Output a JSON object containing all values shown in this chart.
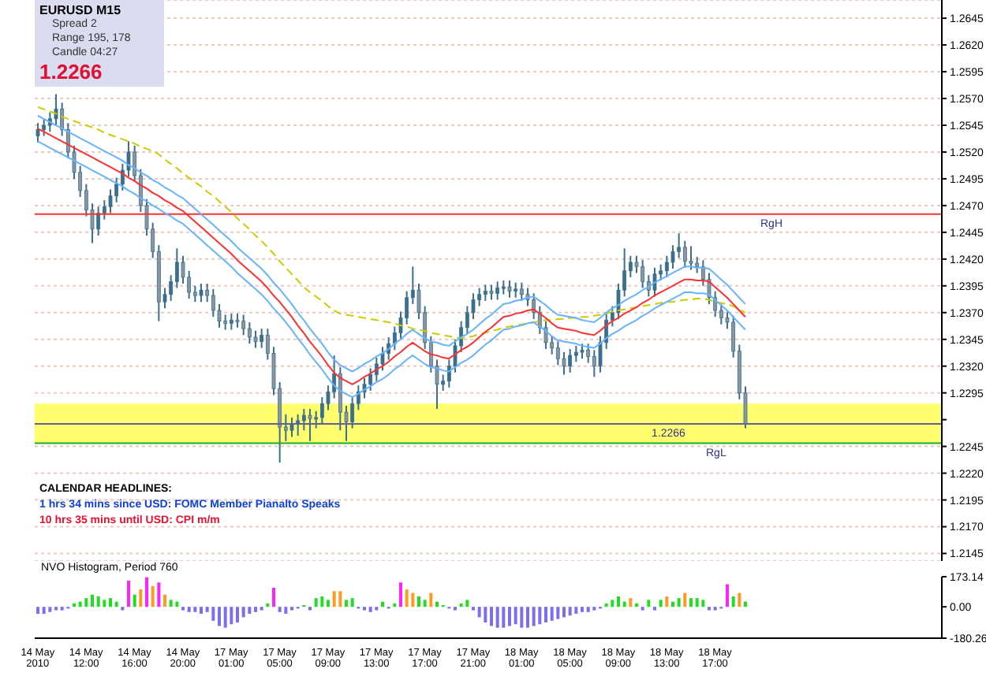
{
  "chart_data": [
    {
      "type": "candlestick",
      "title": "EURUSD  M15",
      "annotations": [
        "Spread  2",
        "Range  195, 178",
        "Candle  04:27",
        "1.2266",
        "CALENDAR HEADLINES:",
        "1 hrs 34 mins since USD: FOMC Member Pianalto Speaks",
        "10 hrs 35 mins until USD: CPI m/m"
      ],
      "categories": [
        null,
        null,
        null,
        null,
        null,
        null,
        null,
        null,
        null,
        null,
        null,
        null,
        null,
        null,
        null,
        null,
        null,
        null,
        null,
        null,
        null,
        null,
        null,
        null,
        null,
        null,
        null,
        null,
        null,
        null,
        null,
        null,
        null,
        null,
        null,
        null,
        null,
        null,
        null,
        null,
        null,
        null,
        null,
        null,
        null,
        null,
        null,
        null,
        null,
        null,
        null,
        null,
        null,
        null,
        null,
        null,
        null,
        null,
        null,
        null,
        null,
        null,
        null,
        null,
        null,
        null,
        null,
        null,
        null,
        null,
        null,
        null,
        null,
        null,
        null,
        null,
        null,
        null,
        null,
        null,
        null,
        null,
        null,
        null,
        null,
        null,
        null,
        null,
        null,
        null,
        null,
        null,
        null,
        null,
        null,
        null,
        null,
        null,
        null,
        null,
        null,
        null,
        null,
        null,
        null,
        null,
        null,
        null,
        null,
        null,
        null,
        null,
        null,
        null,
        null,
        null,
        null,
        null,
        null,
        null,
        null,
        null,
        null,
        null,
        null,
        null,
        null,
        null,
        null,
        null,
        null,
        null,
        null,
        null,
        null,
        null,
        null,
        null,
        null,
        null,
        null,
        null,
        null,
        null,
        null,
        null,
        null,
        null,
        null,
        null
      ],
      "color": "#3a6f8f",
      "ohlc": [
        [
          1.2535,
          1.2547,
          1.2529,
          1.2541
        ],
        [
          1.2541,
          1.2551,
          1.2535,
          1.2545
        ],
        [
          1.2545,
          1.2557,
          1.2539,
          1.2551
        ],
        [
          1.2551,
          1.2574,
          1.2545,
          1.256
        ],
        [
          1.256,
          1.2566,
          1.2535,
          1.2541
        ],
        [
          1.2541,
          1.2547,
          1.2514,
          1.252
        ],
        [
          1.252,
          1.2526,
          1.2495,
          1.2501
        ],
        [
          1.2501,
          1.2507,
          1.2478,
          1.2484
        ],
        [
          1.2484,
          1.249,
          1.246,
          1.2466
        ],
        [
          1.2466,
          1.2472,
          1.2435,
          1.2448
        ],
        [
          1.2448,
          1.2469,
          1.2442,
          1.2463
        ],
        [
          1.2463,
          1.2475,
          1.2457,
          1.2469
        ],
        [
          1.2469,
          1.2485,
          1.2463,
          1.2479
        ],
        [
          1.2479,
          1.2496,
          1.2473,
          1.249
        ],
        [
          1.249,
          1.2509,
          1.2484,
          1.2503
        ],
        [
          1.2503,
          1.253,
          1.2497,
          1.252
        ],
        [
          1.252,
          1.2526,
          1.2492,
          1.2498
        ],
        [
          1.2498,
          1.2504,
          1.2464,
          1.247
        ],
        [
          1.247,
          1.2476,
          1.2442,
          1.2448
        ],
        [
          1.2448,
          1.2454,
          1.2421,
          1.2427
        ],
        [
          1.2427,
          1.2433,
          1.2362,
          1.238
        ],
        [
          1.238,
          1.2393,
          1.2374,
          1.2387
        ],
        [
          1.2387,
          1.2405,
          1.2381,
          1.2399
        ],
        [
          1.2399,
          1.243,
          1.2393,
          1.2417
        ],
        [
          1.2417,
          1.2423,
          1.2397,
          1.2403
        ],
        [
          1.2403,
          1.2409,
          1.2383,
          1.2389
        ],
        [
          1.2389,
          1.2395,
          1.238,
          1.2386
        ],
        [
          1.2386,
          1.2397,
          1.238,
          1.2391
        ],
        [
          1.2391,
          1.2397,
          1.238,
          1.2386
        ],
        [
          1.2386,
          1.2392,
          1.2366,
          1.2372
        ],
        [
          1.2372,
          1.2378,
          1.2356,
          1.2362
        ],
        [
          1.2362,
          1.2368,
          1.2354,
          1.236
        ],
        [
          1.236,
          1.2369,
          1.2354,
          1.2363
        ],
        [
          1.2363,
          1.2369,
          1.2356,
          1.2362
        ],
        [
          1.2362,
          1.2368,
          1.2349,
          1.2355
        ],
        [
          1.2355,
          1.2361,
          1.2341,
          1.2347
        ],
        [
          1.2347,
          1.2353,
          1.2337,
          1.2343
        ],
        [
          1.2343,
          1.2355,
          1.2337,
          1.2349
        ],
        [
          1.2349,
          1.2355,
          1.2326,
          1.2332
        ],
        [
          1.2332,
          1.2338,
          1.2293,
          1.2299
        ],
        [
          1.2299,
          1.2305,
          1.223,
          1.2263
        ],
        [
          1.2263,
          1.2275,
          1.225,
          1.226
        ],
        [
          1.226,
          1.2272,
          1.2254,
          1.2266
        ],
        [
          1.2266,
          1.2275,
          1.2255,
          1.2269
        ],
        [
          1.2269,
          1.228,
          1.226,
          1.2274
        ],
        [
          1.2274,
          1.228,
          1.225,
          1.2271
        ],
        [
          1.2271,
          1.2278,
          1.2262,
          1.2272
        ],
        [
          1.2272,
          1.2291,
          1.2266,
          1.2285
        ],
        [
          1.2285,
          1.2302,
          1.2279,
          1.2296
        ],
        [
          1.2296,
          1.233,
          1.229,
          1.2313
        ],
        [
          1.2313,
          1.2319,
          1.226,
          1.2277
        ],
        [
          1.2277,
          1.2283,
          1.225,
          1.2268
        ],
        [
          1.2268,
          1.2291,
          1.2262,
          1.2285
        ],
        [
          1.2285,
          1.2302,
          1.2279,
          1.2296
        ],
        [
          1.2296,
          1.2309,
          1.229,
          1.2303
        ],
        [
          1.2303,
          1.2318,
          1.2297,
          1.2312
        ],
        [
          1.2312,
          1.2328,
          1.2306,
          1.2322
        ],
        [
          1.2322,
          1.2338,
          1.2316,
          1.2332
        ],
        [
          1.2332,
          1.2347,
          1.2326,
          1.2341
        ],
        [
          1.2341,
          1.2357,
          1.2335,
          1.2351
        ],
        [
          1.2351,
          1.2371,
          1.2345,
          1.2365
        ],
        [
          1.2365,
          1.239,
          1.2359,
          1.2384
        ],
        [
          1.2384,
          1.2413,
          1.2378,
          1.2391
        ],
        [
          1.2391,
          1.2397,
          1.2364,
          1.237
        ],
        [
          1.237,
          1.2376,
          1.2336,
          1.2342
        ],
        [
          1.2342,
          1.2348,
          1.2314,
          1.232
        ],
        [
          1.232,
          1.2326,
          1.228,
          1.2303
        ],
        [
          1.2303,
          1.2312,
          1.2297,
          1.2306
        ],
        [
          1.2306,
          1.2326,
          1.23,
          1.232
        ],
        [
          1.232,
          1.2345,
          1.2314,
          1.2339
        ],
        [
          1.2339,
          1.2362,
          1.2333,
          1.2356
        ],
        [
          1.2356,
          1.2376,
          1.235,
          1.237
        ],
        [
          1.237,
          1.2388,
          1.2364,
          1.2382
        ],
        [
          1.2382,
          1.2393,
          1.2376,
          1.2387
        ],
        [
          1.2387,
          1.2396,
          1.2381,
          1.239
        ],
        [
          1.239,
          1.2396,
          1.2382,
          1.2388
        ],
        [
          1.2388,
          1.2399,
          1.2382,
          1.2393
        ],
        [
          1.2393,
          1.24,
          1.2387,
          1.2394
        ],
        [
          1.2394,
          1.24,
          1.2384,
          1.239
        ],
        [
          1.239,
          1.2398,
          1.2384,
          1.2392
        ],
        [
          1.2392,
          1.2398,
          1.2381,
          1.2387
        ],
        [
          1.2387,
          1.2393,
          1.2376,
          1.2382
        ],
        [
          1.2382,
          1.2388,
          1.2364,
          1.237
        ],
        [
          1.237,
          1.2376,
          1.235,
          1.2356
        ],
        [
          1.2356,
          1.2362,
          1.2336,
          1.2342
        ],
        [
          1.2342,
          1.2348,
          1.2331,
          1.2337
        ],
        [
          1.2337,
          1.2343,
          1.2321,
          1.2327
        ],
        [
          1.2327,
          1.2333,
          1.2312,
          1.232
        ],
        [
          1.232,
          1.2336,
          1.2314,
          1.233
        ],
        [
          1.233,
          1.2339,
          1.2324,
          1.2333
        ],
        [
          1.2333,
          1.2341,
          1.2327,
          1.2335
        ],
        [
          1.2335,
          1.2341,
          1.2323,
          1.2329
        ],
        [
          1.2329,
          1.2335,
          1.231,
          1.232
        ],
        [
          1.232,
          1.2348,
          1.2314,
          1.2342
        ],
        [
          1.2342,
          1.2369,
          1.2336,
          1.2363
        ],
        [
          1.2363,
          1.2376,
          1.2357,
          1.237
        ],
        [
          1.237,
          1.2397,
          1.2364,
          1.2391
        ],
        [
          1.2391,
          1.243,
          1.2385,
          1.2409
        ],
        [
          1.2409,
          1.2423,
          1.2403,
          1.2417
        ],
        [
          1.2417,
          1.2423,
          1.2407,
          1.2413
        ],
        [
          1.2413,
          1.2419,
          1.2393,
          1.2399
        ],
        [
          1.2399,
          1.2405,
          1.2385,
          1.2391
        ],
        [
          1.2391,
          1.2412,
          1.2385,
          1.2406
        ],
        [
          1.2406,
          1.2415,
          1.24,
          1.2409
        ],
        [
          1.2409,
          1.2423,
          1.2403,
          1.2417
        ],
        [
          1.2417,
          1.2433,
          1.2411,
          1.2427
        ],
        [
          1.2427,
          1.2444,
          1.2421,
          1.2431
        ],
        [
          1.2431,
          1.2437,
          1.2412,
          1.2418
        ],
        [
          1.2418,
          1.2432,
          1.241,
          1.2416
        ],
        [
          1.2416,
          1.2422,
          1.2407,
          1.2413
        ],
        [
          1.2413,
          1.2419,
          1.2395,
          1.2401
        ],
        [
          1.2401,
          1.2407,
          1.2378,
          1.2384
        ],
        [
          1.2384,
          1.239,
          1.2366,
          1.2372
        ],
        [
          1.2372,
          1.2378,
          1.2359,
          1.2365
        ],
        [
          1.2365,
          1.2371,
          1.2355,
          1.2361
        ],
        [
          1.2361,
          1.2367,
          1.2328,
          1.2334
        ],
        [
          1.2334,
          1.234,
          1.2289,
          1.2295
        ],
        [
          1.2295,
          1.2301,
          1.2262,
          1.2266
        ],
        null,
        null,
        null,
        null,
        null,
        null,
        null,
        null,
        null,
        null,
        null,
        null,
        null,
        null,
        null,
        null,
        null,
        null,
        null,
        null,
        null,
        null,
        null,
        null,
        null,
        null,
        null,
        null,
        null,
        null,
        null,
        null
      ],
      "series": [
        {
          "type": "line",
          "color": "#cccc00",
          "line_style": "dashed",
          "values": [
            1.2562,
            1.256,
            1.2558,
            1.2556,
            1.2553,
            1.2551,
            1.2549,
            1.2547,
            1.2545,
            1.2543,
            1.2541,
            1.2538,
            1.2536,
            1.2534,
            1.2532,
            1.253,
            1.2528,
            1.2525,
            1.2523,
            1.2521,
            1.2518,
            1.2513,
            1.2509,
            1.2505,
            1.25,
            1.2496,
            1.2492,
            1.2488,
            1.2483,
            1.2479,
            1.2474,
            1.2469,
            1.2464,
            1.2458,
            1.2453,
            1.2448,
            1.2442,
            1.2437,
            1.2431,
            1.2425,
            1.2418,
            1.2412,
            1.2406,
            1.24,
            1.2394,
            1.2389,
            1.2385,
            1.2381,
            1.2376,
            1.2372,
            1.2369,
            1.2368,
            1.2367,
            1.2366,
            1.2365,
            1.2364,
            1.2363,
            1.2362,
            1.2361,
            1.236,
            1.2358,
            1.2357,
            1.2355,
            1.2354,
            1.2353,
            1.2351,
            1.235,
            1.2349,
            1.2348,
            1.2347,
            1.2346,
            1.2347,
            1.2348,
            1.235,
            1.2351,
            1.2353,
            1.2354,
            1.2356,
            1.2357,
            1.2358,
            1.2359,
            1.236,
            1.2361,
            1.2362,
            1.2363,
            1.2363,
            1.2364,
            1.2364,
            1.2365,
            1.2365,
            1.2366,
            1.2366,
            1.2367,
            1.2368,
            1.2369,
            1.2371,
            1.2372,
            1.2373,
            1.2374,
            1.2375,
            1.2376,
            1.2377,
            1.2378,
            1.2379,
            1.238,
            1.238,
            1.2381,
            1.2382,
            1.2382,
            1.2383,
            1.2383,
            1.2382,
            1.238,
            1.2379,
            1.2378,
            1.2376,
            1.2373,
            1.237,
            null,
            null,
            null,
            null,
            null,
            null,
            null,
            null,
            null,
            null,
            null,
            null,
            null,
            null,
            null,
            null,
            null,
            null,
            null,
            null,
            null,
            null,
            null,
            null,
            null,
            null,
            null,
            null,
            null,
            null,
            null,
            null
          ]
        },
        {
          "type": "line",
          "color": "#66b3ff",
          "values": [
            1.2554,
            1.2551,
            1.2548,
            1.2545,
            1.2542,
            1.2539,
            1.2536,
            1.2533,
            1.253,
            1.2527,
            1.2524,
            1.2521,
            1.2518,
            1.2515,
            1.2512,
            1.2508,
            1.2505,
            1.2501,
            1.2498,
            1.2494,
            1.2491,
            1.2487,
            1.2484,
            1.248,
            1.2477,
            1.2472,
            1.2467,
            1.2462,
            1.2457,
            1.2452,
            1.2447,
            1.2442,
            1.2437,
            1.2431,
            1.2426,
            1.2421,
            1.2416,
            1.2411,
            1.2405,
            1.2398,
            1.2392,
            1.2385,
            1.2378,
            1.237,
            1.2363,
            1.2355,
            1.2348,
            1.2341,
            1.2333,
            1.2326,
            1.2321,
            1.2318,
            1.2315,
            1.2318,
            1.2322,
            1.2325,
            1.2329,
            1.2332,
            1.2336,
            1.2341,
            1.2345,
            1.235,
            1.2354,
            1.235,
            1.2346,
            1.2343,
            1.2342,
            1.234,
            1.2339,
            1.2343,
            1.2347,
            1.235,
            1.2354,
            1.2359,
            1.2364,
            1.2368,
            1.2373,
            1.2378,
            1.2379,
            1.2381,
            1.2382,
            1.2384,
            1.2385,
            1.2381,
            1.2377,
            1.2372,
            1.2368,
            1.2367,
            1.2366,
            1.2365,
            1.2363,
            1.2362,
            1.2361,
            1.2365,
            1.237,
            1.2374,
            1.2377,
            1.2381,
            1.2384,
            1.2387,
            1.2391,
            1.2394,
            1.2398,
            1.2401,
            1.2404,
            1.2407,
            1.241,
            1.2413,
            1.2413,
            1.2412,
            1.2412,
            1.2411,
            1.2406,
            1.2401,
            1.2396,
            1.239,
            1.2384,
            1.2378,
            null,
            null,
            null,
            null,
            null,
            null,
            null,
            null,
            null,
            null,
            null,
            null,
            null,
            null,
            null,
            null,
            null,
            null,
            null,
            null,
            null,
            null,
            null,
            null,
            null,
            null,
            null,
            null,
            null,
            null,
            null,
            null
          ]
        },
        {
          "type": "line",
          "color": "#ff3030",
          "values": [
            1.2542,
            1.2539,
            1.2536,
            1.2533,
            1.253,
            1.2527,
            1.2524,
            1.2521,
            1.2518,
            1.2515,
            1.2512,
            1.2509,
            1.2506,
            1.2503,
            1.25,
            1.2496,
            1.2493,
            1.2489,
            1.2486,
            1.2482,
            1.2479,
            1.2475,
            1.2472,
            1.2468,
            1.2465,
            1.246,
            1.2455,
            1.245,
            1.2445,
            1.244,
            1.2435,
            1.243,
            1.2425,
            1.2419,
            1.2414,
            1.2409,
            1.2404,
            1.2399,
            1.2393,
            1.2386,
            1.238,
            1.2373,
            1.2366,
            1.2358,
            1.2351,
            1.2343,
            1.2336,
            1.2329,
            1.2321,
            1.2314,
            1.2309,
            1.2306,
            1.2303,
            1.2306,
            1.231,
            1.2313,
            1.2317,
            1.232,
            1.2324,
            1.2329,
            1.2333,
            1.2338,
            1.2342,
            1.2338,
            1.2334,
            1.2331,
            1.233,
            1.2328,
            1.2327,
            1.2331,
            1.2335,
            1.2338,
            1.2342,
            1.2347,
            1.2352,
            1.2356,
            1.2361,
            1.2366,
            1.2367,
            1.2369,
            1.237,
            1.2372,
            1.2373,
            1.2369,
            1.2365,
            1.236,
            1.2356,
            1.2355,
            1.2354,
            1.2353,
            1.2351,
            1.235,
            1.2349,
            1.2353,
            1.2358,
            1.2362,
            1.2365,
            1.2369,
            1.2372,
            1.2375,
            1.2379,
            1.2382,
            1.2386,
            1.2389,
            1.2392,
            1.2395,
            1.2398,
            1.2401,
            1.2401,
            1.24,
            1.24,
            1.2399,
            1.2394,
            1.2389,
            1.2384,
            1.2378,
            1.2372,
            1.2366,
            null,
            null,
            null,
            null,
            null,
            null,
            null,
            null,
            null,
            null,
            null,
            null,
            null,
            null,
            null,
            null,
            null,
            null,
            null,
            null,
            null,
            null,
            null,
            null,
            null,
            null,
            null,
            null,
            null,
            null,
            null,
            null
          ]
        },
        {
          "type": "line",
          "color": "#66b3ff",
          "values": [
            1.253,
            1.2527,
            1.2524,
            1.2521,
            1.2518,
            1.2515,
            1.2512,
            1.2509,
            1.2506,
            1.2503,
            1.25,
            1.2497,
            1.2494,
            1.2491,
            1.2488,
            1.2484,
            1.2481,
            1.2477,
            1.2474,
            1.247,
            1.2467,
            1.2463,
            1.246,
            1.2456,
            1.2453,
            1.2448,
            1.2443,
            1.2438,
            1.2433,
            1.2428,
            1.2423,
            1.2418,
            1.2413,
            1.2407,
            1.2402,
            1.2397,
            1.2392,
            1.2387,
            1.2381,
            1.2374,
            1.2368,
            1.2361,
            1.2354,
            1.2346,
            1.2339,
            1.2331,
            1.2324,
            1.2317,
            1.2309,
            1.2302,
            1.2297,
            1.2294,
            1.2291,
            1.2294,
            1.2298,
            1.2301,
            1.2305,
            1.2308,
            1.2312,
            1.2317,
            1.2321,
            1.2326,
            1.233,
            1.2326,
            1.2322,
            1.2319,
            1.2318,
            1.2316,
            1.2315,
            1.2319,
            1.2323,
            1.2326,
            1.233,
            1.2335,
            1.234,
            1.2344,
            1.2349,
            1.2354,
            1.2355,
            1.2357,
            1.2358,
            1.236,
            1.2361,
            1.2357,
            1.2353,
            1.2348,
            1.2344,
            1.2343,
            1.2342,
            1.2341,
            1.2339,
            1.2338,
            1.2337,
            1.2341,
            1.2346,
            1.235,
            1.2353,
            1.2357,
            1.236,
            1.2363,
            1.2367,
            1.237,
            1.2374,
            1.2377,
            1.238,
            1.2383,
            1.2386,
            1.2389,
            1.2389,
            1.2388,
            1.2388,
            1.2387,
            1.2382,
            1.2377,
            1.2372,
            1.2366,
            1.236,
            1.2354,
            null,
            null,
            null,
            null,
            null,
            null,
            null,
            null,
            null,
            null,
            null,
            null,
            null,
            null,
            null,
            null,
            null,
            null,
            null,
            null,
            null,
            null,
            null,
            null,
            null,
            null,
            null,
            null,
            null,
            null,
            null,
            null
          ]
        }
      ],
      "ylim": [
        1.2138,
        1.2662
      ],
      "yticks": [
        {
          "value": 1.2145,
          "label": "1.2145"
        },
        {
          "value": 1.217,
          "label": "1.2170"
        },
        {
          "value": 1.2195,
          "label": "1.2195"
        },
        {
          "value": 1.222,
          "label": "1.2220"
        },
        {
          "value": 1.2245,
          "label": "1.2245"
        },
        {
          "value": 1.227,
          "label": null
        },
        {
          "value": 1.2295,
          "label": "1.2295"
        },
        {
          "value": 1.232,
          "label": "1.2320"
        },
        {
          "value": 1.2345,
          "label": "1.2345"
        },
        {
          "value": 1.237,
          "label": "1.2370"
        },
        {
          "value": 1.2395,
          "label": "1.2395"
        },
        {
          "value": 1.242,
          "label": "1.2420"
        },
        {
          "value": 1.2445,
          "label": "1.2445"
        },
        {
          "value": 1.247,
          "label": "1.2470"
        },
        {
          "value": 1.2495,
          "label": "1.2495"
        },
        {
          "value": 1.252,
          "label": "1.2520"
        },
        {
          "value": 1.2545,
          "label": "1.2545"
        },
        {
          "value": 1.257,
          "label": "1.2570"
        },
        {
          "value": 1.2595,
          "label": "1.2595"
        },
        {
          "value": 1.262,
          "label": "1.2620"
        },
        {
          "value": 1.2645,
          "label": "1.2645"
        }
      ],
      "ref_lines": [
        {
          "axis": "y",
          "value": 1.2462,
          "label": "RgH",
          "color": "#ff3030"
        },
        {
          "axis": "y",
          "value": 1.2248,
          "label": "RgL",
          "color": "#22aa22"
        },
        {
          "axis": "y",
          "value": 1.2266,
          "label": "1.2266",
          "color": "#6060a0"
        }
      ],
      "bands": [
        {
          "axis": "y",
          "from": 1.2248,
          "to": 1.2285,
          "color": "#ffff55"
        }
      ],
      "grid": "y",
      "marker": "none",
      "tick_labels": "y"
    },
    {
      "type": "bar",
      "title": "NVO Histogram, Period 760",
      "categories": [
        "14 May 2010",
        null,
        null,
        null,
        null,
        null,
        null,
        null,
        "14 May 12:00",
        null,
        null,
        null,
        null,
        null,
        null,
        null,
        "14 May 16:00",
        null,
        null,
        null,
        null,
        null,
        null,
        null,
        "14 May 20:00",
        null,
        null,
        null,
        null,
        null,
        null,
        null,
        "17 May 01:00",
        null,
        null,
        null,
        null,
        null,
        null,
        null,
        "17 May 05:00",
        null,
        null,
        null,
        null,
        null,
        null,
        null,
        "17 May 09:00",
        null,
        null,
        null,
        null,
        null,
        null,
        null,
        "17 May 13:00",
        null,
        null,
        null,
        null,
        null,
        null,
        null,
        "17 May 17:00",
        null,
        null,
        null,
        null,
        null,
        null,
        null,
        "17 May 21:00",
        null,
        null,
        null,
        null,
        null,
        null,
        null,
        "18 May 01:00",
        null,
        null,
        null,
        null,
        null,
        null,
        null,
        "18 May 05:00",
        null,
        null,
        null,
        null,
        null,
        null,
        null,
        "18 May 09:00",
        null,
        null,
        null,
        null,
        null,
        null,
        null,
        "18 May 13:00",
        null,
        null,
        null,
        null,
        null,
        null,
        null,
        "18 May 17:00",
        null,
        null,
        null,
        null,
        null,
        null,
        null,
        null,
        null,
        null,
        null,
        null,
        null,
        null,
        null,
        null,
        null,
        null,
        null,
        null,
        null,
        null,
        null,
        null,
        null,
        null,
        null,
        null,
        null,
        null,
        null,
        null,
        null,
        null,
        null,
        null,
        null
      ],
      "values": [
        -40,
        -40,
        -30,
        -20,
        -20,
        -10,
        20,
        30,
        50,
        70,
        60,
        40,
        50,
        30,
        -20,
        150,
        70,
        100,
        170,
        120,
        140,
        70,
        40,
        30,
        -20,
        -30,
        -30,
        -40,
        -30,
        -80,
        -110,
        -120,
        -100,
        -90,
        -60,
        -40,
        -30,
        -20,
        20,
        110,
        -30,
        -40,
        -20,
        -10,
        10,
        -20,
        50,
        60,
        40,
        90,
        90,
        40,
        50,
        -10,
        -20,
        -30,
        -20,
        30,
        -10,
        20,
        140,
        100,
        80,
        60,
        40,
        80,
        30,
        10,
        -10,
        -20,
        20,
        40,
        -20,
        -60,
        -90,
        -110,
        -120,
        -120,
        -110,
        -100,
        -120,
        -120,
        -110,
        -100,
        -90,
        -80,
        -70,
        -60,
        -50,
        -40,
        -30,
        -30,
        -20,
        -10,
        20,
        40,
        60,
        30,
        50,
        20,
        -20,
        40,
        -20,
        40,
        60,
        30,
        50,
        80,
        50,
        50,
        40,
        -20,
        -20,
        -10,
        130,
        60,
        80,
        30,
        null,
        null,
        null,
        null,
        null,
        null,
        null,
        null,
        null,
        null,
        null,
        null,
        null,
        null,
        null,
        null,
        null,
        null,
        null,
        null,
        null,
        null,
        null,
        null,
        null,
        null,
        null,
        null,
        null,
        null,
        null,
        null
      ],
      "colors": [
        "#7b6ff0",
        "#7b6ff0",
        "#7b6ff0",
        "#7b6ff0",
        "#7b6ff0",
        "#7b6ff0",
        "#22dd22",
        "#22dd22",
        "#22dd22",
        "#22dd22",
        "#22dd22",
        "#22dd22",
        "#22dd22",
        "#22dd22",
        "#7b6ff0",
        "#ff22ff",
        "#22dd22",
        "#ff9922",
        "#ff22ff",
        "#ff9922",
        "#ff22ff",
        "#ff9922",
        "#22dd22",
        "#22dd22",
        "#7b6ff0",
        "#7b6ff0",
        "#7b6ff0",
        "#7b6ff0",
        "#7b6ff0",
        "#7b6ff0",
        "#7b6ff0",
        "#7b6ff0",
        "#7b6ff0",
        "#7b6ff0",
        "#7b6ff0",
        "#7b6ff0",
        "#7b6ff0",
        "#7b6ff0",
        "#22dd22",
        "#ff22ff",
        "#7b6ff0",
        "#7b6ff0",
        "#7b6ff0",
        "#7b6ff0",
        "#22dd22",
        "#7b6ff0",
        "#22dd22",
        "#22dd22",
        "#22dd22",
        "#ff9922",
        "#ff9922",
        "#22dd22",
        "#22dd22",
        "#7b6ff0",
        "#7b6ff0",
        "#7b6ff0",
        "#7b6ff0",
        "#22dd22",
        "#7b6ff0",
        "#22dd22",
        "#ff22ff",
        "#ff9922",
        "#ff9922",
        "#22dd22",
        "#22dd22",
        "#ff9922",
        "#22dd22",
        "#22dd22",
        "#7b6ff0",
        "#7b6ff0",
        "#22dd22",
        "#22dd22",
        "#7b6ff0",
        "#7b6ff0",
        "#7b6ff0",
        "#7b6ff0",
        "#7b6ff0",
        "#7b6ff0",
        "#7b6ff0",
        "#7b6ff0",
        "#7b6ff0",
        "#7b6ff0",
        "#7b6ff0",
        "#7b6ff0",
        "#7b6ff0",
        "#7b6ff0",
        "#7b6ff0",
        "#7b6ff0",
        "#7b6ff0",
        "#7b6ff0",
        "#7b6ff0",
        "#7b6ff0",
        "#7b6ff0",
        "#7b6ff0",
        "#22dd22",
        "#22dd22",
        "#22dd22",
        "#22dd22",
        "#ff9922",
        "#22dd22",
        "#7b6ff0",
        "#22dd22",
        "#7b6ff0",
        "#22dd22",
        "#ff9922",
        "#22dd22",
        "#22dd22",
        "#ff9922",
        "#22dd22",
        "#22dd22",
        "#22dd22",
        "#7b6ff0",
        "#7b6ff0",
        "#7b6ff0",
        "#ff22ff",
        "#22dd22",
        "#ff9922",
        "#22dd22",
        null,
        null,
        null,
        null,
        null,
        null,
        null,
        null,
        null,
        null,
        null,
        null,
        null,
        null,
        null,
        null,
        null,
        null,
        null,
        null,
        null,
        null,
        null,
        null,
        null,
        null,
        null,
        null,
        null,
        null,
        null,
        null
      ],
      "ylim": [
        -180.26,
        173.14
      ],
      "yticks": [
        {
          "value": -180.26,
          "label": "-180.26"
        },
        {
          "value": 0,
          "label": "0.00"
        },
        {
          "value": 173.14,
          "label": "173.14"
        }
      ]
    }
  ]
}
